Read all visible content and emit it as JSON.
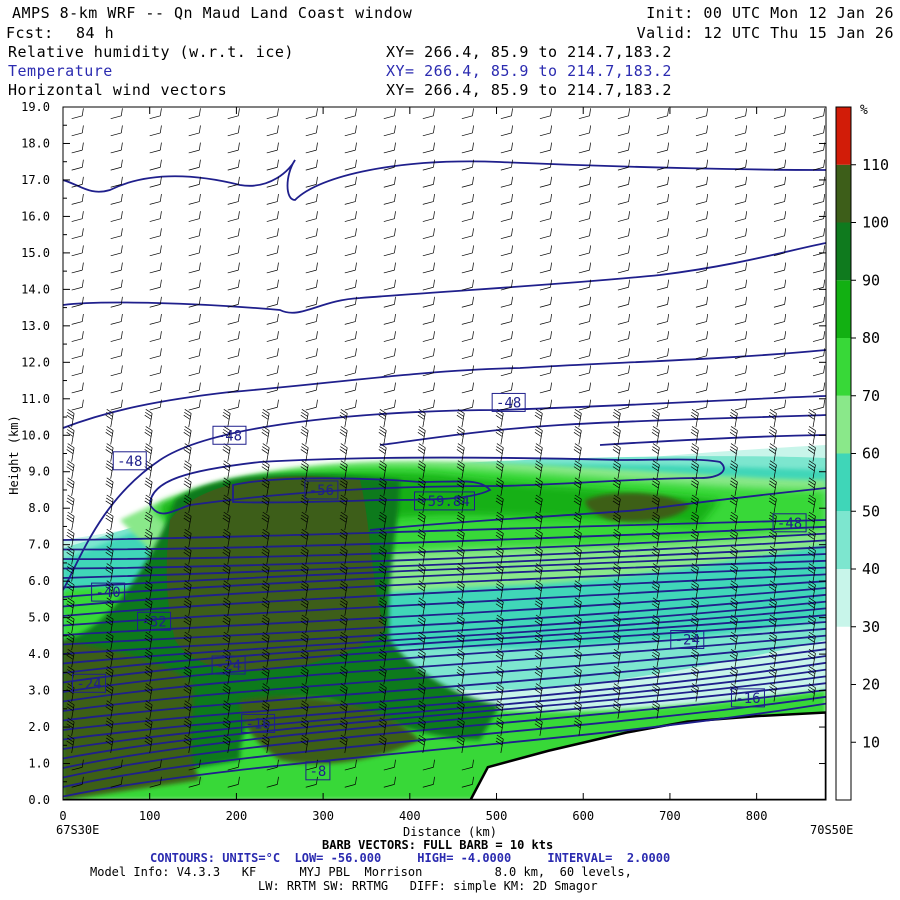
{
  "header": {
    "title": "AMPS 8-km WRF -- Qn Maud Land Coast window",
    "fcst_label": "Fcst:",
    "fcst_value": "84 h",
    "init": "Init: 00 UTC Mon 12 Jan 26",
    "valid": "Valid: 12 UTC Thu 15 Jan 26",
    "field1": "Relative humidity (w.r.t. ice)",
    "field2": "Temperature",
    "field3": "Horizontal wind vectors",
    "xy1": "XY= 266.4, 85.9 to 214.7,183.2",
    "xy2": "XY= 266.4, 85.9 to 214.7,183.2",
    "xy3": "XY= 266.4, 85.9 to 214.7,183.2"
  },
  "colors": {
    "temp_contour": "#1f1f8c",
    "blue_text": "#2b2bb0",
    "terrain": "#000000"
  },
  "chart_data": {
    "type": "vertical cross-section (filled contour + line contour + wind barbs)",
    "x_axis": {
      "label": "Distance (km)",
      "range": [
        0,
        880
      ],
      "ticks": [
        0,
        100,
        200,
        300,
        400,
        500,
        600,
        700,
        800
      ],
      "left_label": "67S30E",
      "right_label": "70S50E"
    },
    "y_axis": {
      "label": "Height (km)",
      "range": [
        0,
        19
      ],
      "ticks": [
        "0.0",
        "1.0",
        "2.0",
        "3.0",
        "4.0",
        "5.0",
        "6.0",
        "7.0",
        "8.0",
        "9.0",
        "10.0",
        "11.0",
        "12.0",
        "13.0",
        "14.0",
        "15.0",
        "16.0",
        "17.0",
        "18.0",
        "19.0"
      ]
    },
    "colorbar": {
      "units": "%",
      "tick_labels": [
        "10",
        "20",
        "30",
        "40",
        "50",
        "60",
        "70",
        "80",
        "90",
        "100",
        "110"
      ],
      "bins": [
        {
          "range": [
            0,
            10
          ],
          "color": "#ffffff"
        },
        {
          "range": [
            10,
            20
          ],
          "color": "#ffffff"
        },
        {
          "range": [
            20,
            30
          ],
          "color": "#ffffff"
        },
        {
          "range": [
            30,
            40
          ],
          "color": "#c8f5ea"
        },
        {
          "range": [
            40,
            50
          ],
          "color": "#7de6cf"
        },
        {
          "range": [
            50,
            60
          ],
          "color": "#3fd6b8"
        },
        {
          "range": [
            60,
            70
          ],
          "color": "#8ae88a"
        },
        {
          "range": [
            70,
            80
          ],
          "color": "#38d838"
        },
        {
          "range": [
            80,
            90
          ],
          "color": "#12b012"
        },
        {
          "range": [
            90,
            100
          ],
          "color": "#0f7a1e"
        },
        {
          "range": [
            100,
            110
          ],
          "color": "#3d5e19"
        },
        {
          "range": [
            110,
            120
          ],
          "color": "#d21c08"
        }
      ]
    },
    "contour_labels": [
      {
        "text": "-48",
        "x_km": 514,
        "z_km": 10.9
      },
      {
        "text": "-48",
        "x_km": 192,
        "z_km": 10.0
      },
      {
        "text": "-48",
        "x_km": 77,
        "z_km": 9.3
      },
      {
        "text": "-56",
        "x_km": 298,
        "z_km": 8.5
      },
      {
        "text": "-59.84",
        "x_km": 440,
        "z_km": 8.2
      },
      {
        "text": "-48",
        "x_km": 838,
        "z_km": 7.6
      },
      {
        "text": "-40",
        "x_km": 52,
        "z_km": 5.7
      },
      {
        "text": "-32",
        "x_km": 105,
        "z_km": 4.9
      },
      {
        "text": "-24",
        "x_km": 191,
        "z_km": 3.7
      },
      {
        "text": "-24",
        "x_km": 720,
        "z_km": 4.4
      },
      {
        "text": "-24",
        "x_km": 30,
        "z_km": 3.2
      },
      {
        "text": "-16",
        "x_km": 225,
        "z_km": 2.1
      },
      {
        "text": "-16",
        "x_km": 790,
        "z_km": 2.8
      },
      {
        "text": "-8",
        "x_km": 294,
        "z_km": 0.8
      }
    ],
    "terrain_profile_km": [
      [
        0,
        0
      ],
      [
        470,
        0
      ],
      [
        490,
        0.9
      ],
      [
        560,
        1.35
      ],
      [
        650,
        1.85
      ],
      [
        720,
        2.15
      ],
      [
        800,
        2.3
      ],
      [
        880,
        2.4
      ]
    ]
  },
  "footer": {
    "barb": "BARB VECTORS: FULL BARB = 10 kts",
    "contours": "CONTOURS: UNITS=°C  LOW= -56.000     HIGH= -4.0000     INTERVAL=  2.0000",
    "model": "Model Info: V4.3.3   KF      MYJ PBL  Morrison          8.0 km,  60 levels,",
    "lw": "LW: RRTM SW: RRTMG   DIFF: simple KM: 2D Smagor"
  }
}
